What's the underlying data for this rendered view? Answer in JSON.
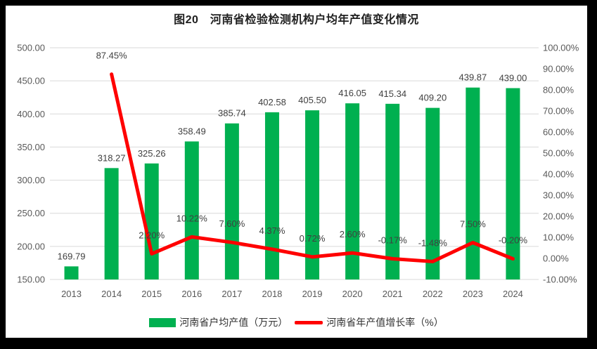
{
  "title": "图20　河南省检验检测机构户均年产值变化情况",
  "colors": {
    "bar": "#00B050",
    "line": "#FF0000",
    "gridline": "#D9D9D9",
    "axis_text": "#595959",
    "data_label": "#404040",
    "title_text": "#1f1f1f",
    "background": "#ffffff",
    "frame": "#000000"
  },
  "chart_data": {
    "type": "bar",
    "subtype": "bar-line-combo",
    "title": "图20　河南省检验检测机构户均年产值变化情况",
    "categories": [
      "2013",
      "2014",
      "2015",
      "2016",
      "2017",
      "2018",
      "2019",
      "2020",
      "2021",
      "2022",
      "2023",
      "2024"
    ],
    "series": [
      {
        "name": "河南省户均产值（万元）",
        "type": "bar",
        "axis": "left",
        "color": "#00B050",
        "values": [
          169.79,
          318.27,
          325.26,
          358.49,
          385.74,
          402.58,
          405.5,
          416.05,
          415.34,
          409.2,
          439.87,
          439.0
        ]
      },
      {
        "name": "河南省年产值增长率（%）",
        "type": "line",
        "axis": "right",
        "color": "#FF0000",
        "values": [
          null,
          87.45,
          2.2,
          10.22,
          7.6,
          4.37,
          0.72,
          2.6,
          -0.17,
          -1.48,
          7.5,
          -0.2
        ]
      }
    ],
    "left_axis": {
      "min": 150,
      "max": 500,
      "step": 50,
      "format": "fixed2"
    },
    "right_axis": {
      "min": -10,
      "max": 100,
      "step": 10,
      "format": "fixed2percent"
    },
    "grid": true,
    "legend_position": "bottom",
    "data_labels": true
  }
}
